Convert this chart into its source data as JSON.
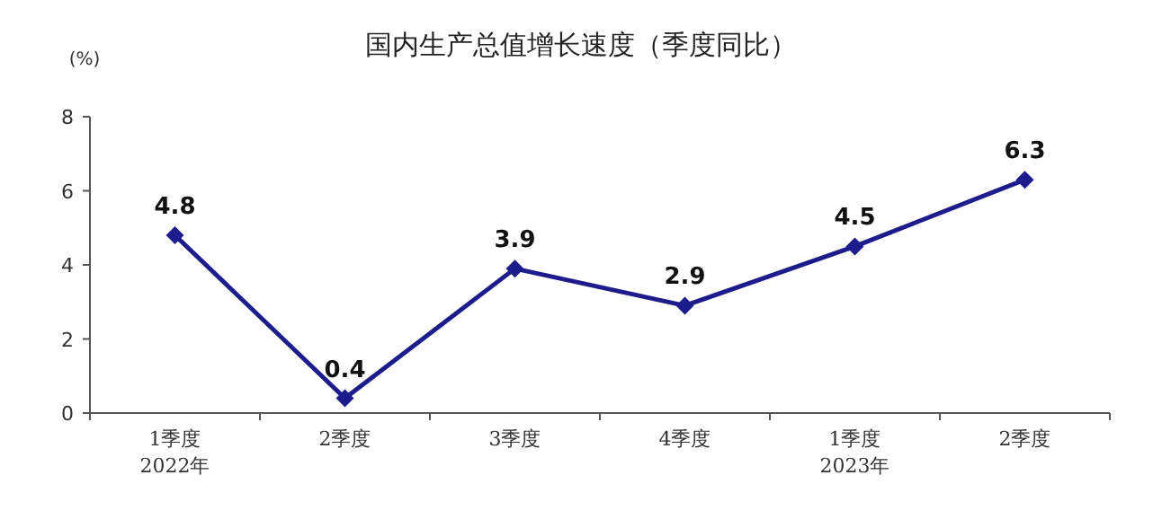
{
  "chart_data": {
    "type": "line",
    "title": "国内生产总值增长速度（季度同比）",
    "ylabel": "(%)",
    "categories": [
      "1季度\n2022年",
      "2季度",
      "3季度",
      "4季度",
      "1季度\n2023年",
      "2季度"
    ],
    "values": [
      4.8,
      0.4,
      3.9,
      2.9,
      4.5,
      6.3
    ],
    "color": "#1c1c8c",
    "marker": "diamond",
    "data_labels": true,
    "ylim": [
      0,
      8
    ],
    "yticks": [
      0,
      2,
      4,
      6,
      8
    ]
  }
}
